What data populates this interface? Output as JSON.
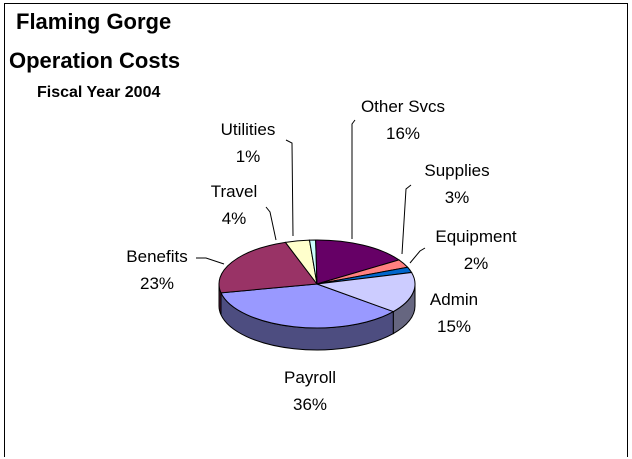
{
  "chart_data": {
    "type": "pie",
    "title_line1": "Flaming Gorge",
    "title_line2": "Operation Costs",
    "subtitle": "Fiscal Year 2004",
    "slices": [
      {
        "label": "Payroll",
        "value": 36,
        "display": "36%",
        "color": "#9999ff",
        "side": "#4d4d80"
      },
      {
        "label": "Benefits",
        "value": 23,
        "display": "23%",
        "color": "#993366",
        "side": "#4d1933"
      },
      {
        "label": "Travel",
        "value": 4,
        "display": "4%",
        "color": "#ffffcc",
        "side": "#808066"
      },
      {
        "label": "Utilities",
        "value": 1,
        "display": "1%",
        "color": "#ccffff",
        "side": "#668080"
      },
      {
        "label": "Other Svcs",
        "value": 16,
        "display": "16%",
        "color": "#660066",
        "side": "#330033"
      },
      {
        "label": "Supplies",
        "value": 3,
        "display": "3%",
        "color": "#ff8080",
        "side": "#804040"
      },
      {
        "label": "Equipment",
        "value": 2,
        "display": "2%",
        "color": "#0066cc",
        "side": "#003366"
      },
      {
        "label": "Admin",
        "value": 15,
        "display": "15%",
        "color": "#ccccff",
        "side": "#666680"
      }
    ]
  }
}
